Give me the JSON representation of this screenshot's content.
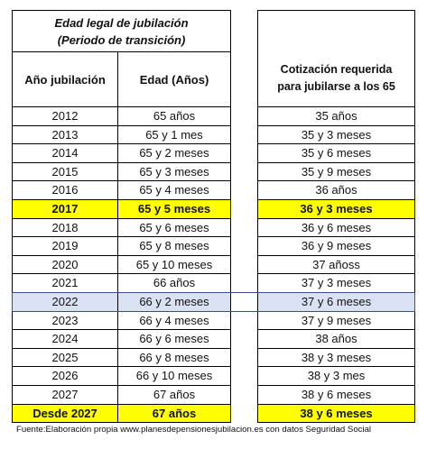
{
  "header": {
    "title_line1": "Edad legal de jubilación",
    "title_line2": "(Periodo de transición)",
    "col_year": "Año jubilación",
    "col_age": "Edad (Años)",
    "col_cot_line1": "Cotización requerida",
    "col_cot_line2": "para jubilarse a los 65"
  },
  "rows": [
    {
      "year": "2012",
      "age": "65 años",
      "cot": "35 años",
      "highlight": false
    },
    {
      "year": "2013",
      "age": "65 y 1 mes",
      "cot": "35  y 3 meses",
      "highlight": false
    },
    {
      "year": "2014",
      "age": "65 y 2 meses",
      "cot": "35 y 6 meses",
      "highlight": false
    },
    {
      "year": "2015",
      "age": "65 y 3 meses",
      "cot": "35 y 9 meses",
      "highlight": false
    },
    {
      "year": "2016",
      "age": "65 y 4 meses",
      "cot": "36 años",
      "highlight": false
    },
    {
      "year": "2017",
      "age": "65 y 5 meses",
      "cot": "36 y 3 meses",
      "highlight": true
    },
    {
      "year": "2018",
      "age": "65 y 6 meses",
      "cot": "36 y 6 meses",
      "highlight": false
    },
    {
      "year": "2019",
      "age": "65 y 8 meses",
      "cot": "36 y 9 meses",
      "highlight": false
    },
    {
      "year": "2020",
      "age": "65 y 10 meses",
      "cot": "37 añoss",
      "highlight": false
    },
    {
      "year": "2021",
      "age": "66 años",
      "cot": "37 y 3 meses",
      "highlight": false
    },
    {
      "year": "2022",
      "age": "66 y 2 meses",
      "cot": "37 y 6 meses",
      "highlight": false,
      "selected": true
    },
    {
      "year": "2023",
      "age": "66 y 4 meses",
      "cot": "37 y 9 meses",
      "highlight": false
    },
    {
      "year": "2024",
      "age": "66 y 6 meses",
      "cot": "38 años",
      "highlight": false
    },
    {
      "year": "2025",
      "age": "66 y 8 meses",
      "cot": "38 y 3 meses",
      "highlight": false
    },
    {
      "year": "2026",
      "age": "66 y 10 meses",
      "cot": "38 y 3 mes",
      "highlight": false
    },
    {
      "year": "2027",
      "age": "67 años",
      "cot": "38 y 6 meses",
      "highlight": false
    },
    {
      "year": "Desde 2027",
      "age": "67 años",
      "cot": "38 y 6 meses",
      "highlight": true
    }
  ],
  "colors": {
    "highlight": "#ffff00",
    "selected_fill": "#d9e1f2",
    "selected_border": "#3a4f8a"
  },
  "footer": "Fuente:Elaboración propia www.planesdepensionesjubilacion.es con datos Seguridad Social"
}
